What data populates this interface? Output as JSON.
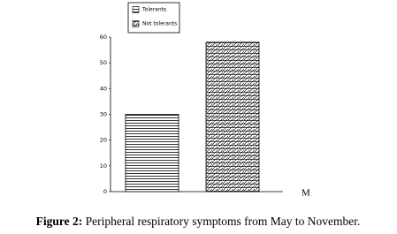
{
  "chart_data": {
    "type": "bar",
    "categories": [
      null
    ],
    "series": [
      {
        "name": "Tolerants",
        "color": "#000000",
        "values": [
          30
        ]
      },
      {
        "name": "Not tolerants",
        "color": "#000000",
        "values": [
          58
        ]
      }
    ],
    "x_label": "M",
    "ylim": [
      0,
      60
    ],
    "yticks": [
      0,
      10,
      20,
      30,
      40,
      50,
      60
    ],
    "caption_label": "Figure 2:",
    "caption": "Peripheral respiratory symptoms from May to November."
  }
}
